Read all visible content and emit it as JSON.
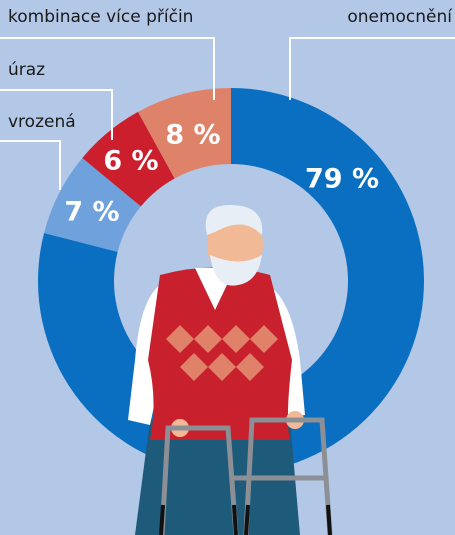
{
  "chart_data": {
    "type": "donut",
    "categories": [
      "onemocnění",
      "vrozená",
      "úraz",
      "kombinace více příčin"
    ],
    "values": [
      79,
      7,
      6,
      8
    ],
    "value_labels": [
      "79 %",
      "7 %",
      "6 %",
      "8 %"
    ],
    "colors": [
      "#0b6fc1",
      "#6fa1dc",
      "#cc1f2e",
      "#df826a"
    ]
  }
}
